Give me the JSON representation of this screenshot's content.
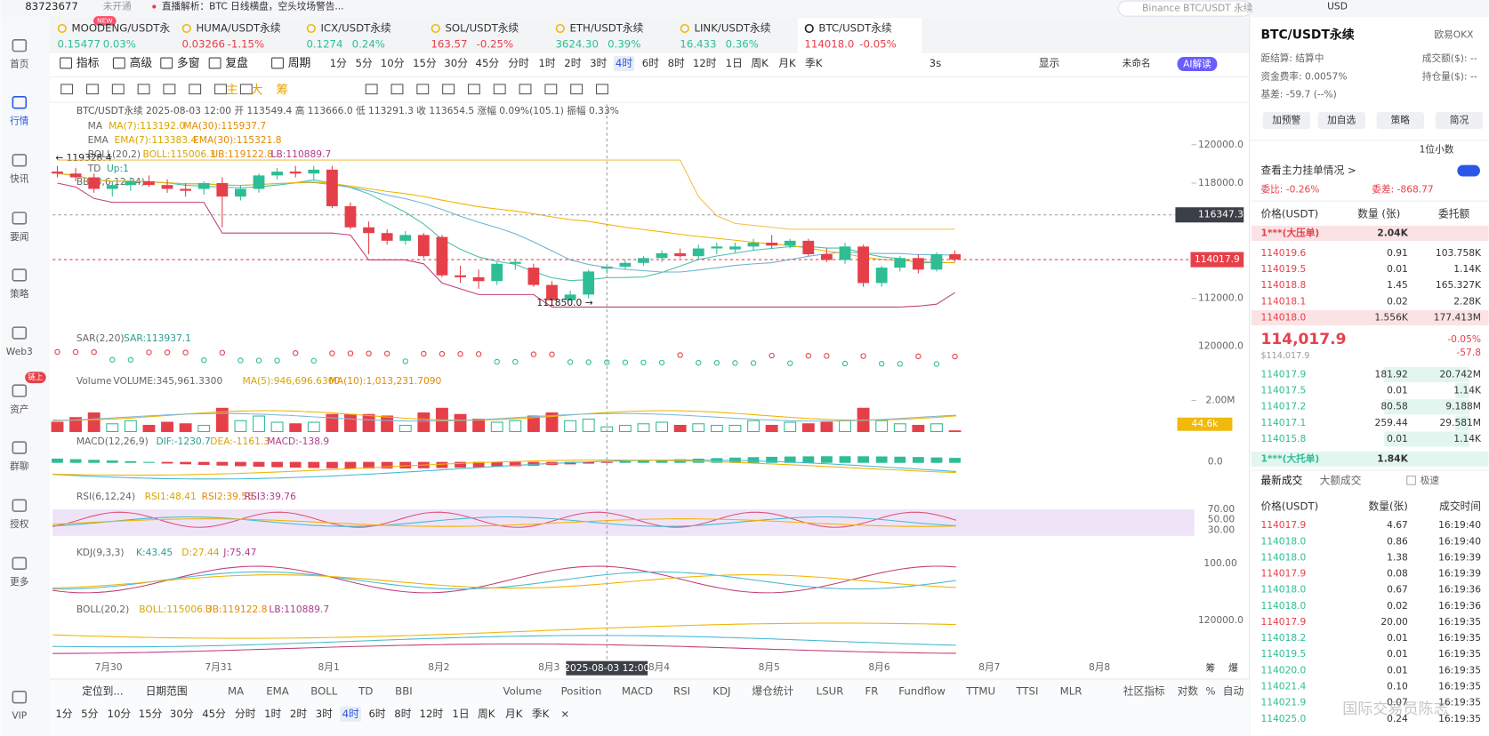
{
  "topbar": {
    "account": "83723677",
    "status": "未开通",
    "news": "直播解析：BTC 日线横盘，空头坟场警告...",
    "search": "Binance BTC/USDT 永续",
    "currency": "USD"
  },
  "sidebar": {
    "items": [
      "首页",
      "行情",
      "快讯",
      "要闻",
      "策略",
      "Web3",
      "资产",
      "群聊",
      "授权",
      "更多",
      "VIP"
    ],
    "badge": "链上",
    "new_badge": "NEW"
  },
  "tabs": [
    {
      "name": "MOODENG/USDT永",
      "price": "0.15477",
      "change": "0.03%"
    },
    {
      "name": "HUMA/USDT永续",
      "price": "0.03266",
      "change": "-1.15%"
    },
    {
      "name": "ICX/USDT永续",
      "price": "0.1274",
      "change": "0.24%"
    },
    {
      "name": "SOL/USDT永续",
      "price": "163.57",
      "change": "-0.25%"
    },
    {
      "name": "ETH/USDT永续",
      "price": "3624.30",
      "change": "0.39%"
    },
    {
      "name": "LINK/USDT永续",
      "price": "16.433",
      "change": "0.36%"
    },
    {
      "name": "BTC/USDT永续",
      "price": "114018.0",
      "change": "-0.05%"
    }
  ],
  "toolbar": {
    "tools": [
      "指标",
      "高级",
      "多窗",
      "复盘",
      "周期"
    ],
    "intervals": [
      "1分",
      "5分",
      "10分",
      "15分",
      "30分",
      "45分",
      "分时",
      "1时",
      "2时",
      "3时",
      "4时",
      "6时",
      "8时",
      "12时",
      "1日",
      "周K",
      "月K",
      "季K"
    ],
    "active_interval": "4时",
    "refresh": "3s",
    "display": "显示",
    "layout": "未命名",
    "ai": "AI解读"
  },
  "drawing_tools": [
    "主",
    "大",
    "筹"
  ],
  "chart": {
    "legend": "BTC/USDT永续  2025-08-03 12:00  开 113549.4  高 113666.0  低 113291.3  收 113654.5  涨幅 0.09%(105.1)  振幅 0.33%",
    "ma": [
      "MA",
      "MA(7):113192.0",
      "MA(30):115937.7"
    ],
    "ema": [
      "EMA",
      "EMA(7):113383.4",
      "EMA(30):115321.8"
    ],
    "boll": [
      "BOLL(20,2)",
      "BOLL:115006.3",
      "UB:119122.8",
      "LB:110889.7"
    ],
    "td": [
      "TD",
      "Up:1"
    ],
    "bbi": "BBI(3,6,12,24)",
    "high_label": "← 119328.4",
    "low_label": "111850.0 →",
    "ylim": [
      110500,
      122200
    ],
    "yticks": [
      {
        "value": 120000,
        "label": "120000.0"
      },
      {
        "value": 118000,
        "label": "118000.0"
      },
      {
        "value": 112000,
        "label": "112000.0"
      }
    ],
    "crosshair_price": 116347.3,
    "last_price": 114017.9,
    "up_color": "#2ebd95",
    "down_color": "#e5404a",
    "ohlc": [
      [
        118600,
        118900,
        118300,
        118500
      ],
      [
        118500,
        118800,
        118100,
        118300
      ],
      [
        118300,
        118500,
        117500,
        117700
      ],
      [
        117700,
        118100,
        117300,
        117900
      ],
      [
        117900,
        118300,
        117600,
        118100
      ],
      [
        118100,
        118400,
        117800,
        117900
      ],
      [
        117900,
        118200,
        117500,
        117700
      ],
      [
        117700,
        118000,
        117300,
        117600
      ],
      [
        117700,
        118100,
        117400,
        118000
      ],
      [
        118000,
        118300,
        115700,
        117300
      ],
      [
        117300,
        117900,
        117100,
        117700
      ],
      [
        117700,
        118500,
        117500,
        118400
      ],
      [
        118400,
        118800,
        118200,
        118600
      ],
      [
        118600,
        118900,
        118300,
        118500
      ],
      [
        118500,
        118900,
        118200,
        118700
      ],
      [
        118700,
        118900,
        116700,
        116800
      ],
      [
        116800,
        117000,
        115600,
        115700
      ],
      [
        115700,
        116000,
        114300,
        115400
      ],
      [
        115400,
        115600,
        114800,
        115000
      ],
      [
        115000,
        115500,
        114800,
        115300
      ],
      [
        115300,
        115400,
        114100,
        114200
      ],
      [
        115200,
        115300,
        113100,
        113200
      ],
      [
        113200,
        113700,
        112800,
        113100
      ],
      [
        113100,
        113500,
        112500,
        112900
      ],
      [
        112900,
        113900,
        112700,
        113800
      ],
      [
        113800,
        114000,
        113500,
        113900
      ],
      [
        113600,
        113800,
        112600,
        112700
      ],
      [
        112700,
        112900,
        111850,
        111900
      ],
      [
        111900,
        112400,
        111900,
        112200
      ],
      [
        112200,
        113500,
        112000,
        113400
      ],
      [
        113549.4,
        113666.0,
        113291.3,
        113654.5
      ],
      [
        113650,
        114000,
        113500,
        113850
      ],
      [
        113850,
        114200,
        113700,
        114100
      ],
      [
        114100,
        114500,
        113900,
        114350
      ],
      [
        114350,
        114600,
        114100,
        114200
      ],
      [
        114200,
        114800,
        114000,
        114600
      ],
      [
        114600,
        114900,
        114300,
        114700
      ],
      [
        114550,
        114900,
        114400,
        114700
      ],
      [
        114700,
        115100,
        114500,
        114900
      ],
      [
        114900,
        115300,
        114600,
        114750
      ],
      [
        114750,
        115100,
        114600,
        115000
      ],
      [
        115000,
        115100,
        114200,
        114300
      ],
      [
        114300,
        114600,
        113900,
        114000
      ],
      [
        114000,
        114900,
        113800,
        114700
      ],
      [
        114700,
        114800,
        112600,
        112800
      ],
      [
        112800,
        113700,
        112600,
        113600
      ],
      [
        113600,
        114200,
        113400,
        114100
      ],
      [
        114100,
        114300,
        113300,
        113500
      ],
      [
        113500,
        114400,
        113400,
        114300
      ],
      [
        114300,
        114500,
        113900,
        114017.9
      ]
    ],
    "crosshair_index": 30,
    "crosshair_time": "2025-08-03 12:00",
    "dates": [
      "7月30",
      "7月31",
      "8月1",
      "8月2",
      "8月3",
      "8月4",
      "8月5",
      "8月6",
      "8月7",
      "8月8"
    ],
    "corner": [
      "筹",
      "爆"
    ],
    "sar": {
      "name": "SAR(2,20)",
      "value": "SAR:113937.1",
      "tick": "120000.0"
    },
    "volume": {
      "labels": [
        "Volume",
        "VOLUME:345,961.3300",
        "MA(5):946,696.6300",
        "MA(10):1,013,231.7090"
      ],
      "ylim": [
        0,
        2750000
      ],
      "yticks": [
        {
          "value": 2000000,
          "label": "2.00M"
        }
      ],
      "values": [
        600000,
        900000,
        1200000,
        500000,
        700000,
        400000,
        600000,
        500000,
        400000,
        1500000,
        700000,
        1000000,
        600000,
        500000,
        600000,
        1100000,
        1100000,
        1100000,
        1000000,
        400000,
        1200000,
        1500000,
        1100000,
        800000,
        600000,
        700000,
        1000000,
        1200000,
        700000,
        800000,
        300000,
        400000,
        500000,
        600000,
        400000,
        500000,
        400000,
        400000,
        700000,
        400000,
        600000,
        500000,
        600000,
        700000,
        1500000,
        700000,
        500000,
        400000,
        500000,
        44600
      ],
      "last_label": "44.6k"
    },
    "macd": {
      "labels": [
        "MACD(12,26,9)",
        "DIF:-1230.7",
        "DEA:-1161.3",
        "MACD:-138.9"
      ],
      "tick": "0.0"
    },
    "rsi": {
      "labels": [
        "RSI(6,12,24)",
        "RSI1:48.41",
        "RSI2:39.55",
        "RSI3:39.76"
      ],
      "ticks": [
        "70.00",
        "50.00",
        "30.00"
      ]
    },
    "kdj": {
      "labels": [
        "KDJ(9,3,3)",
        "K:43.45",
        "D:27.44",
        "J:75.47"
      ],
      "tick": "100.00"
    },
    "boll2": {
      "labels": [
        "BOLL(20,2)",
        "BOLL:115006.3",
        "UB:119122.8",
        "LB:110889.7"
      ],
      "tick": "120000.0"
    }
  },
  "bottom_bar": {
    "locate": "定位到...",
    "range": "日期范围",
    "main": [
      "MA",
      "EMA",
      "BOLL",
      "TD",
      "BBI"
    ],
    "sub": [
      "Volume",
      "Position",
      "MACD",
      "RSI",
      "KDJ",
      "爆仓统计",
      "LSUR",
      "FR",
      "Fundflow",
      "TTMU",
      "TTSI",
      "MLR"
    ],
    "right": [
      "社区指标",
      "对数",
      "%",
      "自动"
    ],
    "close": "×"
  },
  "panel": {
    "symbol": "BTC/USDT永续",
    "exchange": "欧易OKX",
    "info": [
      [
        "距结算: 结算中",
        "成交额($): --"
      ],
      [
        "资金费率: 0.0057%",
        "持仓量($): --"
      ],
      [
        "基差: -59.7 (--%)",
        ""
      ]
    ],
    "buttons": [
      "加预警",
      "加自选",
      "策略",
      "简况"
    ],
    "precision": "1位小数",
    "main_orders": "查看主力挂单情况 >",
    "ratio": "委比: -0.26%",
    "diff": "委差: -868.77",
    "book_headers": [
      "价格(USDT)",
      "数量 (张)",
      "委托额"
    ],
    "big_ask": [
      "1***(大压单)",
      "2.04K"
    ],
    "asks": [
      [
        "114019.6",
        "0.91",
        "103.758K"
      ],
      [
        "114019.5",
        "0.01",
        "1.14K"
      ],
      [
        "114018.8",
        "1.45",
        "165.327K"
      ],
      [
        "114018.1",
        "0.02",
        "2.28K"
      ],
      [
        "114018.0",
        "1.556K",
        "177.413M"
      ]
    ],
    "mid": {
      "price": "114,017.9",
      "change": "-0.05%",
      "usd": "$114,017.9",
      "diff": "-57.8"
    },
    "bids": [
      [
        "114017.9",
        "181.92",
        "20.742M"
      ],
      [
        "114017.5",
        "0.01",
        "1.14K"
      ],
      [
        "114017.2",
        "80.58",
        "9.188M"
      ],
      [
        "114017.1",
        "259.44",
        "29.581M"
      ],
      [
        "114015.8",
        "0.01",
        "1.14K"
      ]
    ],
    "big_bid": [
      "1***(大托单)",
      "1.84K"
    ],
    "trade_tabs": [
      "最新成交",
      "大额成交",
      "极速"
    ],
    "trade_headers": [
      "价格(USDT)",
      "数量(张)",
      "成交时间"
    ],
    "trades": [
      [
        "114017.9",
        "4.67",
        "16:19:40"
      ],
      [
        "114018.0",
        "0.86",
        "16:19:40"
      ],
      [
        "114018.0",
        "1.38",
        "16:19:39"
      ],
      [
        "114017.9",
        "0.08",
        "16:19:39"
      ],
      [
        "114018.0",
        "0.67",
        "16:19:36"
      ],
      [
        "114018.0",
        "0.02",
        "16:19:36"
      ],
      [
        "114017.9",
        "20.00",
        "16:19:35"
      ],
      [
        "114018.2",
        "0.01",
        "16:19:35"
      ],
      [
        "114019.5",
        "0.01",
        "16:19:35"
      ],
      [
        "114020.0",
        "0.01",
        "16:19:35"
      ],
      [
        "114021.4",
        "0.10",
        "16:19:35"
      ],
      [
        "114021.9",
        "0.07",
        "16:19:35"
      ],
      [
        "114025.0",
        "0.24",
        "16:19:35"
      ]
    ],
    "watermark": "国际交易员陈志"
  }
}
